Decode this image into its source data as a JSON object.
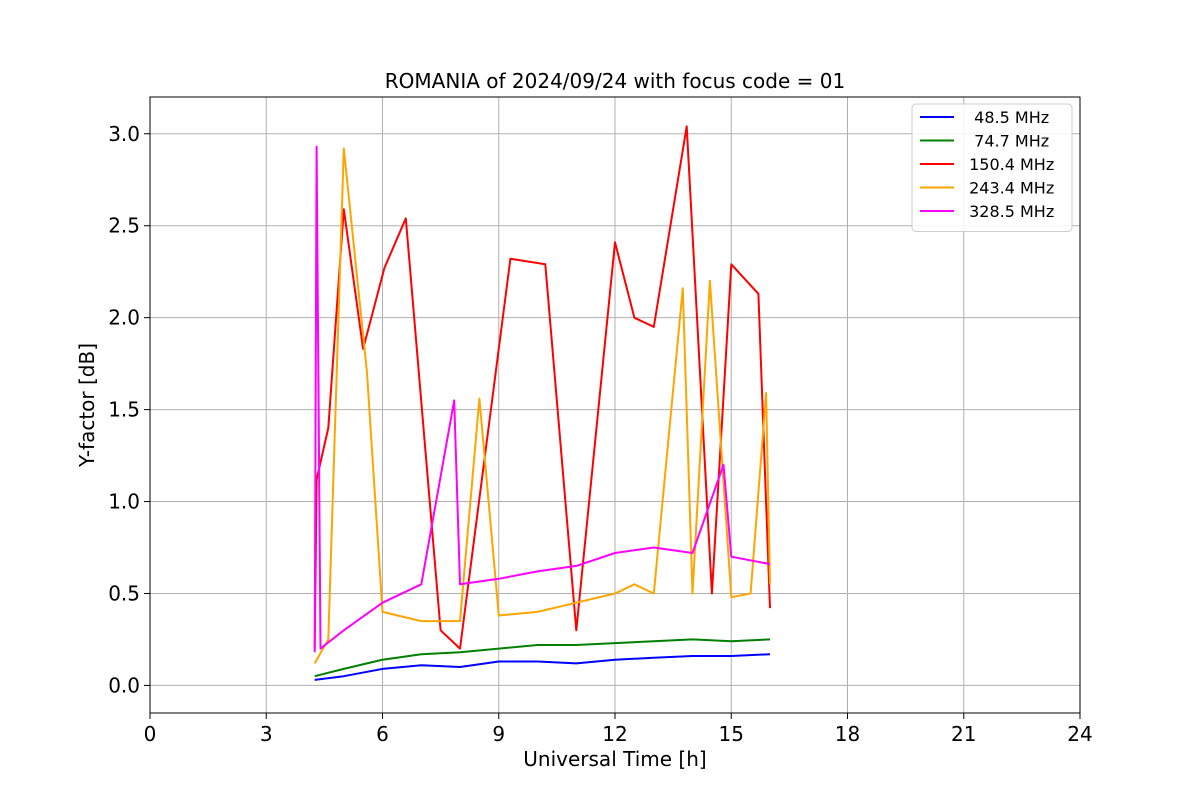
{
  "chart_data": {
    "type": "line",
    "title": "ROMANIA of 2024/09/24 with focus code = 01",
    "xlabel": "Universal Time [h]",
    "ylabel": "Y-factor [dB]",
    "xlim": [
      0,
      24
    ],
    "ylim": [
      -0.15,
      3.2
    ],
    "x_ticks": [
      0,
      3,
      6,
      9,
      12,
      15,
      18,
      21,
      24
    ],
    "x_tick_labels": [
      "0",
      "3",
      "6",
      "9",
      "12",
      "15",
      "18",
      "21",
      "24"
    ],
    "y_ticks": [
      0.0,
      0.5,
      1.0,
      1.5,
      2.0,
      2.5,
      3.0
    ],
    "y_tick_labels": [
      "0.0",
      "0.5",
      "1.0",
      "1.5",
      "2.0",
      "2.5",
      "3.0"
    ],
    "grid": true,
    "legend_position": "top-right",
    "data_note_x_range_hours": [
      4.25,
      16.0
    ],
    "series": [
      {
        "name": "  48.5 MHz",
        "color": "#0000ff",
        "x": [
          4.25,
          5.0,
          6.0,
          7.0,
          8.0,
          9.0,
          10.0,
          11.0,
          12.0,
          13.0,
          14.0,
          15.0,
          16.0
        ],
        "y": [
          0.03,
          0.05,
          0.09,
          0.11,
          0.1,
          0.13,
          0.13,
          0.12,
          0.14,
          0.15,
          0.16,
          0.16,
          0.17
        ]
      },
      {
        "name": "  74.7 MHz",
        "color": "#008000",
        "x": [
          4.25,
          5.0,
          6.0,
          7.0,
          8.0,
          9.0,
          10.0,
          11.0,
          12.0,
          13.0,
          14.0,
          15.0,
          16.0
        ],
        "y": [
          0.05,
          0.09,
          0.14,
          0.17,
          0.18,
          0.2,
          0.22,
          0.22,
          0.23,
          0.24,
          0.25,
          0.24,
          0.25
        ]
      },
      {
        "name": " 150.4 MHz",
        "color": "#ff0000",
        "x": [
          4.25,
          4.3,
          4.6,
          5.0,
          5.5,
          6.05,
          6.6,
          7.5,
          8.0,
          9.3,
          10.2,
          11.0,
          12.0,
          12.5,
          13.0,
          13.85,
          14.5,
          15.0,
          15.7,
          16.0
        ],
        "y": [
          0.2,
          1.12,
          1.4,
          2.59,
          1.83,
          2.27,
          2.54,
          0.3,
          0.2,
          2.32,
          2.29,
          0.3,
          2.41,
          2.0,
          1.95,
          3.04,
          0.5,
          2.29,
          2.13,
          0.42
        ]
      },
      {
        "name": " 243.4 MHz",
        "color": "#ffa500",
        "x": [
          4.25,
          4.6,
          5.0,
          5.6,
          6.0,
          7.0,
          8.0,
          8.5,
          9.0,
          10.0,
          11.0,
          12.0,
          12.5,
          13.0,
          13.75,
          14.0,
          14.45,
          15.0,
          15.5,
          15.9,
          16.0
        ],
        "y": [
          0.12,
          0.25,
          2.92,
          1.7,
          0.4,
          0.35,
          0.35,
          1.56,
          0.38,
          0.4,
          0.45,
          0.5,
          0.55,
          0.5,
          2.16,
          0.5,
          2.2,
          0.48,
          0.5,
          1.59,
          0.55
        ]
      },
      {
        "name": " 328.5 MHz",
        "color": "#ff00ff",
        "x": [
          4.25,
          4.3,
          4.4,
          5.0,
          6.0,
          7.0,
          7.85,
          8.0,
          9.0,
          10.0,
          11.0,
          12.0,
          13.0,
          14.0,
          14.8,
          15.0,
          16.0
        ],
        "y": [
          0.18,
          2.93,
          0.2,
          0.3,
          0.45,
          0.55,
          1.55,
          0.55,
          0.58,
          0.62,
          0.65,
          0.72,
          0.75,
          0.72,
          1.2,
          0.7,
          0.66
        ]
      }
    ]
  }
}
